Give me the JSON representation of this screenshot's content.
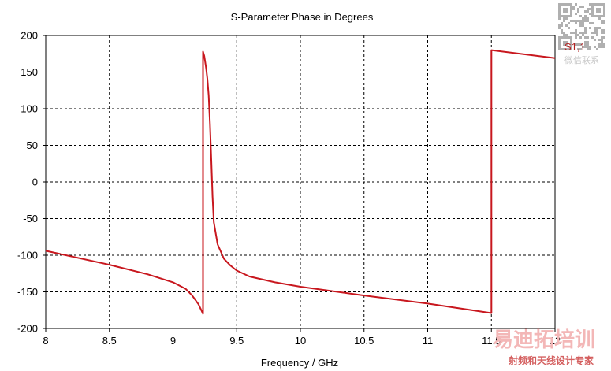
{
  "chart_data": {
    "type": "line",
    "title": "S-Parameter Phase in Degrees",
    "xlabel": "Frequency / GHz",
    "ylabel": "",
    "xlim": [
      8,
      12
    ],
    "ylim": [
      -200,
      200
    ],
    "x_ticks": [
      "8",
      "8.5",
      "9",
      "9.5",
      "10",
      "10.5",
      "11",
      "11.5",
      "12"
    ],
    "y_ticks": [
      "200",
      "150",
      "100",
      "50",
      "0",
      "-50",
      "-100",
      "-150",
      "-200"
    ],
    "grid": true,
    "legend_position": "top-right",
    "series": [
      {
        "name": "S1,1",
        "color": "#c8171e",
        "segments": [
          [
            [
              8.0,
              -94
            ],
            [
              8.5,
              -113
            ],
            [
              8.8,
              -126
            ],
            [
              9.0,
              -137
            ],
            [
              9.1,
              -146
            ],
            [
              9.15,
              -155
            ],
            [
              9.2,
              -167
            ],
            [
              9.235,
              -180
            ]
          ],
          [
            [
              9.235,
              178
            ],
            [
              9.245,
              172
            ],
            [
              9.26,
              155
            ],
            [
              9.27,
              140
            ],
            [
              9.28,
              118
            ],
            [
              9.29,
              80
            ],
            [
              9.3,
              30
            ],
            [
              9.31,
              -20
            ],
            [
              9.32,
              -55
            ],
            [
              9.35,
              -85
            ],
            [
              9.4,
              -105
            ],
            [
              9.45,
              -114
            ],
            [
              9.5,
              -121
            ],
            [
              9.6,
              -129
            ],
            [
              9.8,
              -137
            ],
            [
              10.0,
              -143
            ],
            [
              10.5,
              -155
            ],
            [
              11.0,
              -166
            ],
            [
              11.5,
              -179
            ]
          ],
          [
            [
              11.5,
              180
            ],
            [
              12.0,
              169
            ]
          ]
        ]
      }
    ]
  },
  "watermark": {
    "corner_label": "微信联系",
    "brand": "易迪拓培训",
    "tagline": "射频和天线设计专家"
  }
}
